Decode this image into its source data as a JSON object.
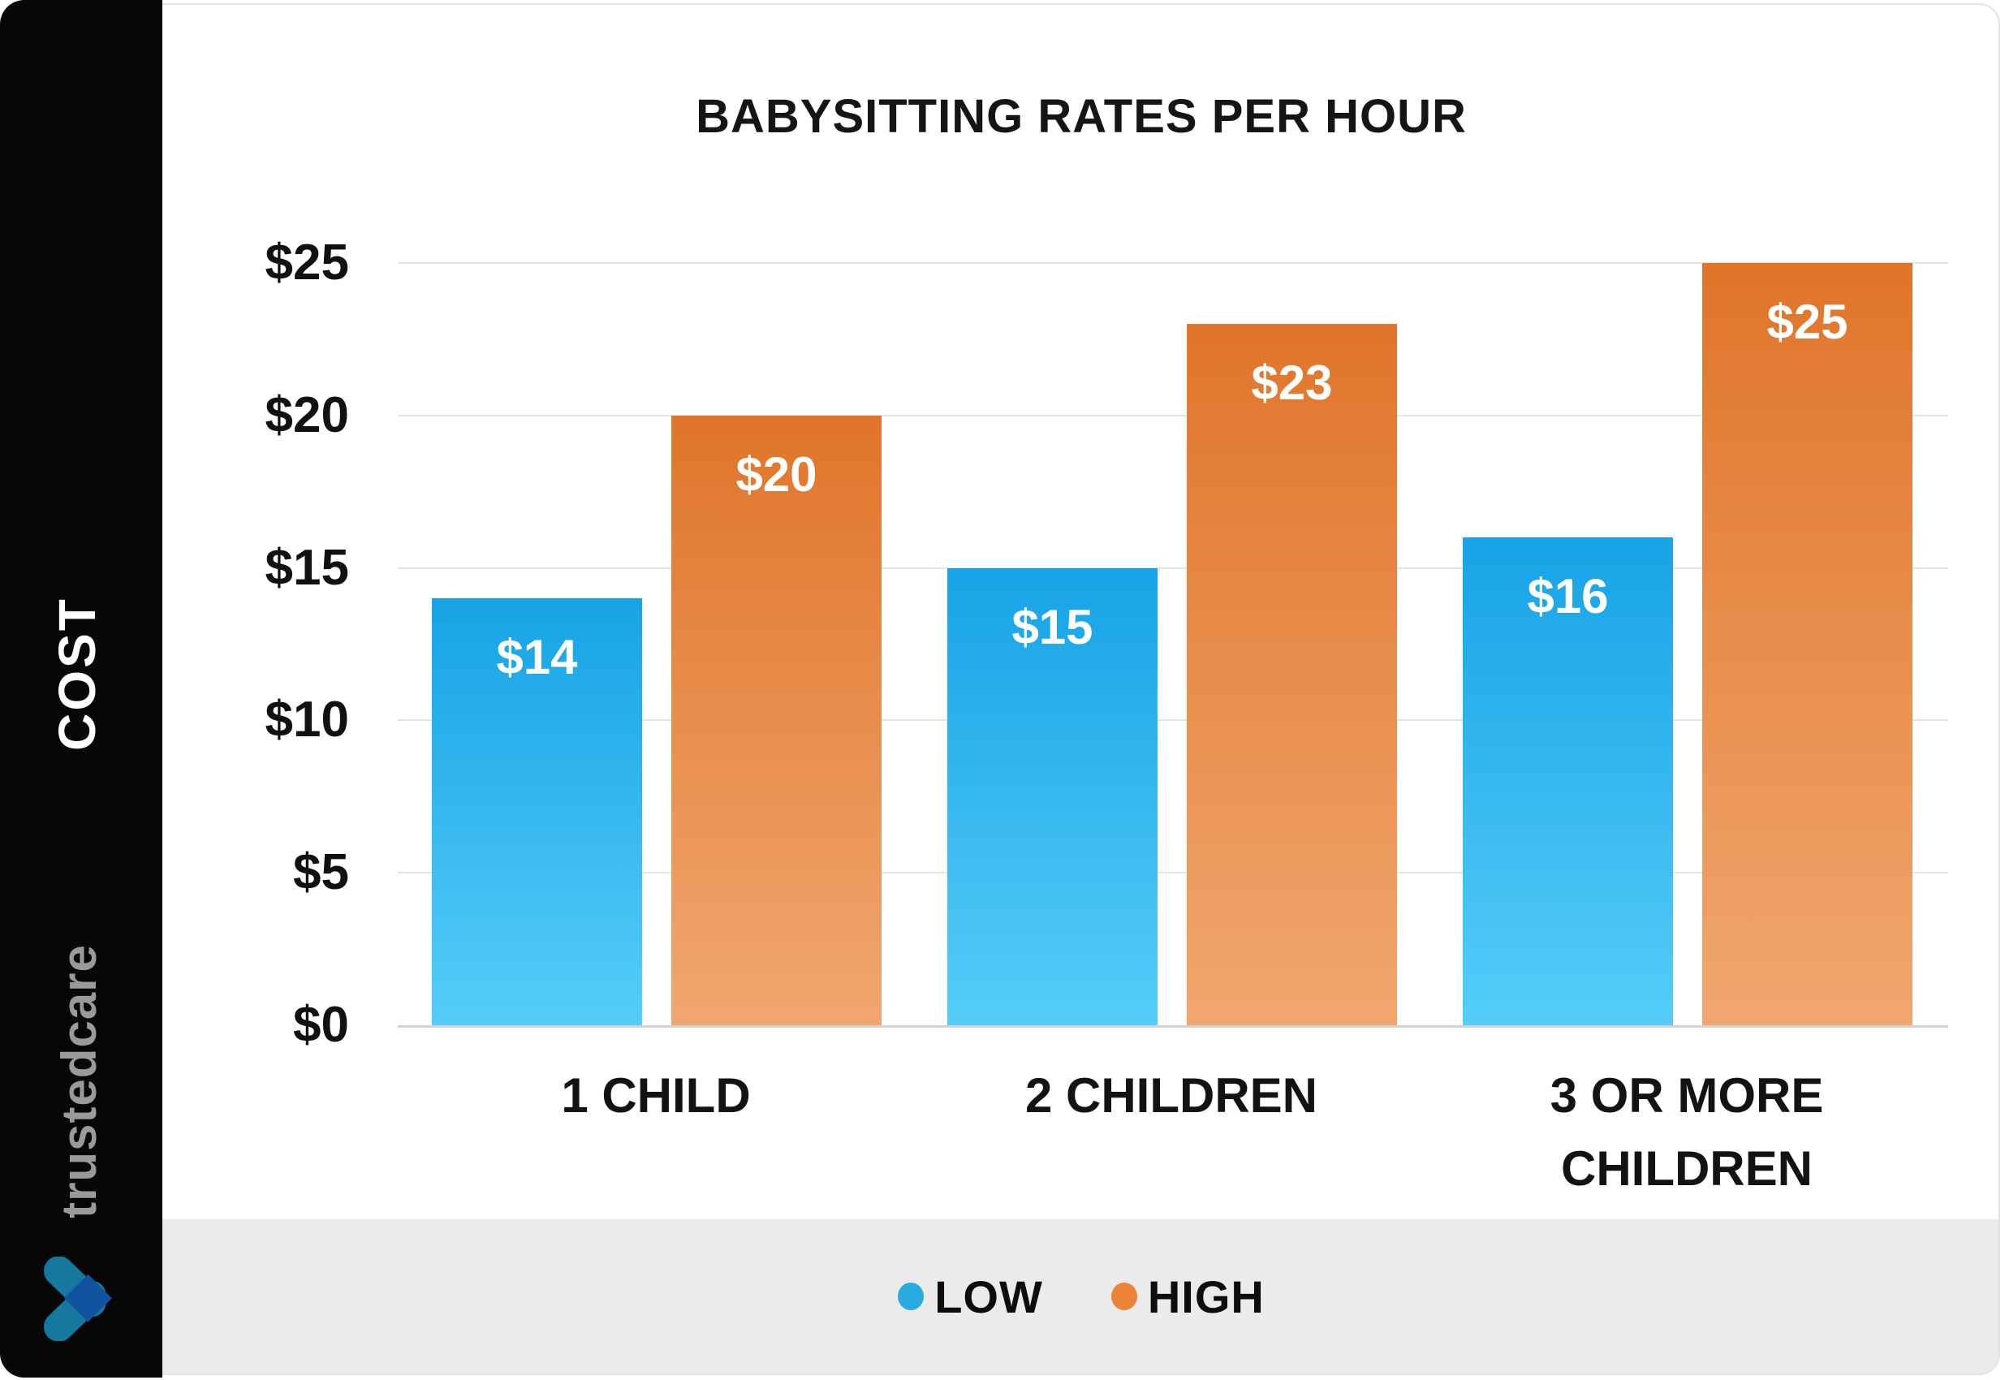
{
  "title": "BABYSITTING RATES PER HOUR",
  "sidebar": {
    "axis_label": "COST",
    "brand": "trustedcare",
    "logo": "heart-chevron-logo",
    "logo_colors": {
      "stroke": "#16779f",
      "overlap": "#1253a0"
    }
  },
  "chart_data": {
    "type": "bar",
    "title": "BABYSITTING RATES PER HOUR",
    "categories": [
      "1 CHILD",
      "2 CHILDREN",
      "3 OR MORE CHILDREN"
    ],
    "series": [
      {
        "name": "LOW",
        "color": "#29abe2",
        "values": [
          14,
          15,
          16
        ]
      },
      {
        "name": "HIGH",
        "color": "#ed8337",
        "values": [
          20,
          23,
          25
        ]
      }
    ],
    "value_prefix": "$",
    "ylabel": "COST",
    "ylim": [
      0,
      25
    ],
    "yticks": [
      {
        "label": "$0",
        "value": 0
      },
      {
        "label": "$5",
        "value": 5
      },
      {
        "label": "$10",
        "value": 10
      },
      {
        "label": "$15",
        "value": 15
      },
      {
        "label": "$20",
        "value": 20
      },
      {
        "label": "$25",
        "value": 25
      }
    ],
    "grid": true,
    "legend_position": "bottom",
    "bar_label_color": "#ffffff",
    "low_gradient": [
      "#17a3e6",
      "#55cdf8"
    ],
    "high_gradient": [
      "#e0752b",
      "#f0a76e"
    ]
  }
}
